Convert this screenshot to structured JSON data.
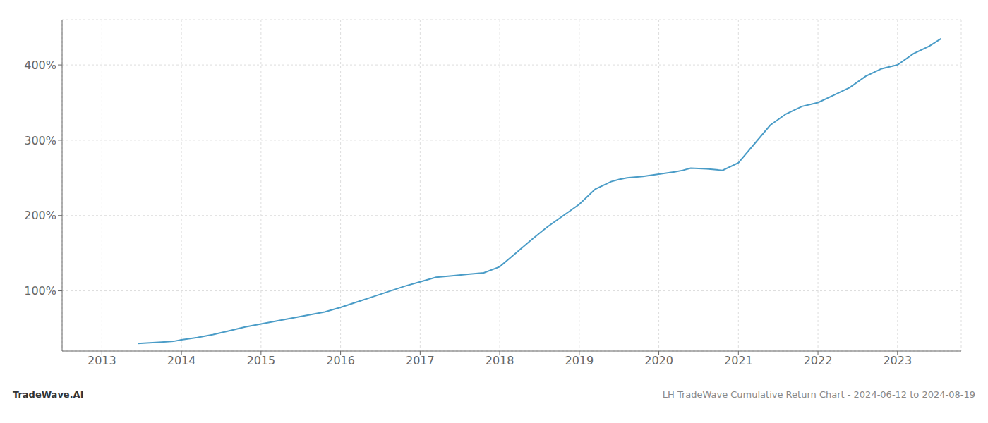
{
  "chart_data": {
    "type": "line",
    "annotations": [
      "TradeWave.AI",
      "LH TradeWave Cumulative Return Chart - 2024-06-12 to 2024-08-19"
    ],
    "x": [
      2013.45,
      2013.6,
      2013.75,
      2013.9,
      2014.0,
      2014.2,
      2014.4,
      2014.6,
      2014.8,
      2015.0,
      2015.2,
      2015.4,
      2015.6,
      2015.8,
      2016.0,
      2016.2,
      2016.4,
      2016.6,
      2016.8,
      2017.0,
      2017.2,
      2017.4,
      2017.6,
      2017.8,
      2018.0,
      2018.2,
      2018.4,
      2018.6,
      2018.8,
      2019.0,
      2019.2,
      2019.4,
      2019.5,
      2019.6,
      2019.8,
      2020.0,
      2020.2,
      2020.3,
      2020.4,
      2020.6,
      2020.8,
      2021.0,
      2021.2,
      2021.4,
      2021.6,
      2021.8,
      2022.0,
      2022.2,
      2022.4,
      2022.6,
      2022.8,
      2023.0,
      2023.2,
      2023.4,
      2023.55
    ],
    "values": [
      30,
      31,
      32,
      33,
      35,
      38,
      42,
      47,
      52,
      56,
      60,
      64,
      68,
      72,
      78,
      85,
      92,
      99,
      106,
      112,
      118,
      120,
      122,
      124,
      132,
      150,
      168,
      185,
      200,
      215,
      235,
      245,
      248,
      250,
      252,
      255,
      258,
      260,
      263,
      262,
      260,
      270,
      295,
      320,
      335,
      345,
      350,
      360,
      370,
      385,
      395,
      400,
      415,
      425,
      435
    ],
    "color": "#4a9cc7",
    "xlim": [
      2012.5,
      2023.8
    ],
    "xticks": [
      2013,
      2014,
      2015,
      2016,
      2017,
      2018,
      2019,
      2020,
      2021,
      2022,
      2023
    ],
    "ylim": [
      20,
      460
    ],
    "yticks": [
      {
        "value": 100,
        "label": "100%"
      },
      {
        "value": 200,
        "label": "200%"
      },
      {
        "value": 300,
        "label": "300%"
      },
      {
        "value": 400,
        "label": "400%"
      }
    ],
    "grid": true
  }
}
